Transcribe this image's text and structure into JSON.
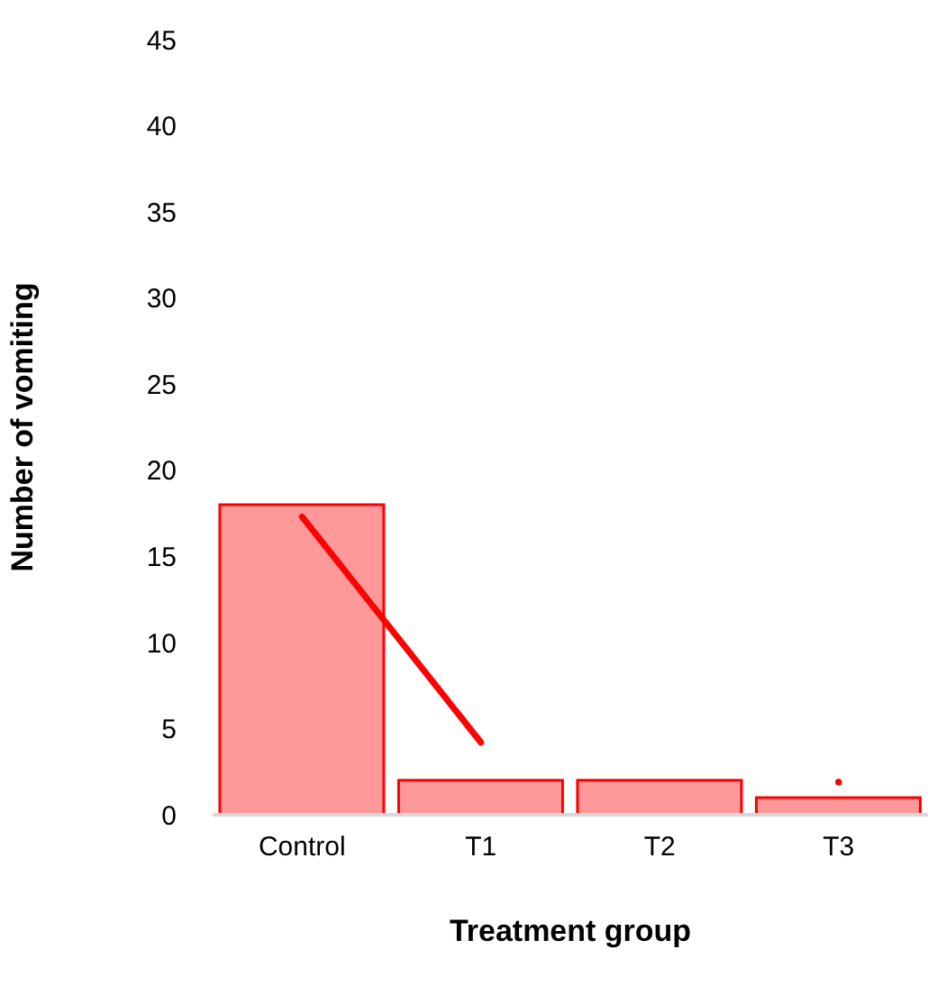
{
  "chart_data": {
    "type": "bar",
    "xlabel": "Treatment group",
    "ylabel": "Number of vomiting",
    "categories": [
      "Control",
      "T1",
      "T2",
      "T3"
    ],
    "series": [
      {
        "values": [
          18,
          2,
          2,
          1
        ],
        "color": "#ff9999"
      },
      {
        "type": "line",
        "values": [
          17.3,
          4.2,
          null,
          1.9
        ],
        "color": "#ff0000"
      }
    ],
    "ylim": [
      0,
      45
    ],
    "yticks": [
      0,
      5,
      10,
      15,
      20,
      25,
      30,
      35,
      40,
      45
    ],
    "grid": false,
    "legend": false
  }
}
